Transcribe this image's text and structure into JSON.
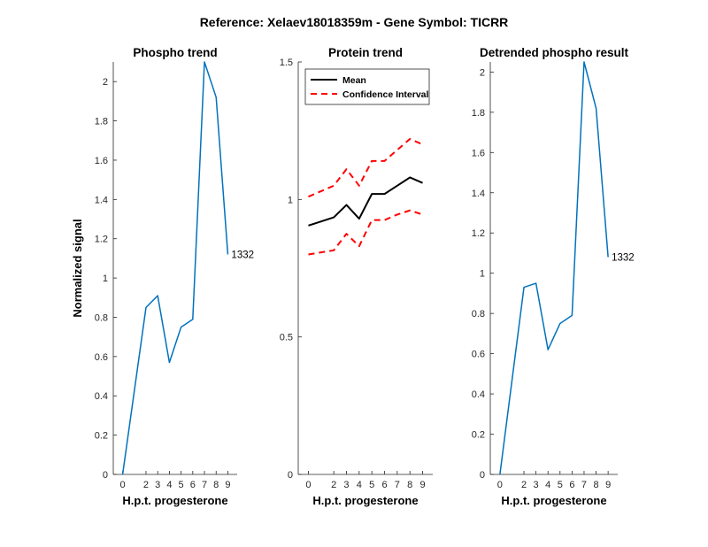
{
  "suptitle": "Reference:  Xelaev18018359m - Gene Symbol:  TICRR",
  "chart_data": [
    {
      "type": "line",
      "title": "Phospho trend",
      "xlabel": "H.p.t. progesterone",
      "ylabel": "Normalized signal",
      "xlim": [
        -0.8,
        9.8
      ],
      "ylim": [
        0,
        2.1
      ],
      "x_ticks": [
        0,
        2,
        3,
        4,
        5,
        6,
        7,
        8,
        9
      ],
      "y_ticks": [
        0,
        0.2,
        0.4,
        0.6,
        0.8,
        1,
        1.2,
        1.4,
        1.6,
        1.8,
        2
      ],
      "y_tick_labels": [
        "0",
        "0.2",
        "0.4",
        "0.6",
        "0.8",
        "1",
        "1.2",
        "1.4",
        "1.6",
        "1.8",
        "2"
      ],
      "series": [
        {
          "color": "#0072BD",
          "style": "solid",
          "x": [
            0,
            2,
            3,
            4,
            5,
            6,
            7,
            8,
            9
          ],
          "y": [
            0.0,
            0.85,
            0.91,
            0.57,
            0.75,
            0.79,
            2.1,
            1.92,
            1.12
          ]
        }
      ],
      "annotation": {
        "text": "1332",
        "x": 9,
        "y": 1.12
      }
    },
    {
      "type": "line",
      "title": "Protein trend",
      "xlabel": "H.p.t. progesterone",
      "ylabel": "",
      "xlim": [
        -0.8,
        9.8
      ],
      "ylim": [
        0,
        1.5
      ],
      "x_ticks": [
        0,
        2,
        3,
        4,
        5,
        6,
        7,
        8,
        9
      ],
      "y_ticks": [
        0,
        0.5,
        1,
        1.5
      ],
      "y_tick_labels": [
        "0",
        "0.5",
        "1",
        "1.5"
      ],
      "legend_position": "top-left",
      "series": [
        {
          "name": "Mean",
          "color": "#000000",
          "style": "solid",
          "x": [
            0,
            2,
            3,
            4,
            5,
            6,
            7,
            8,
            9
          ],
          "y": [
            0.905,
            0.935,
            0.98,
            0.93,
            1.02,
            1.02,
            1.05,
            1.08,
            1.06
          ]
        },
        {
          "name": "Confidence Interval",
          "color": "#FF0000",
          "style": "dashed",
          "x": [
            0,
            2,
            3,
            4,
            5,
            6,
            7,
            8,
            9
          ],
          "y": [
            1.01,
            1.05,
            1.11,
            1.05,
            1.14,
            1.14,
            1.18,
            1.22,
            1.2
          ]
        },
        {
          "color": "#FF0000",
          "style": "dashed",
          "x": [
            0,
            2,
            3,
            4,
            5,
            6,
            7,
            8,
            9
          ],
          "y": [
            0.8,
            0.815,
            0.875,
            0.83,
            0.925,
            0.925,
            0.945,
            0.96,
            0.945
          ]
        }
      ]
    },
    {
      "type": "line",
      "title": "Detrended phospho result",
      "xlabel": "H.p.t. progesterone",
      "ylabel": "",
      "xlim": [
        -0.8,
        9.8
      ],
      "ylim": [
        0,
        2.05
      ],
      "x_ticks": [
        0,
        2,
        3,
        4,
        5,
        6,
        7,
        8,
        9
      ],
      "y_ticks": [
        0,
        0.2,
        0.4,
        0.6,
        0.8,
        1,
        1.2,
        1.4,
        1.6,
        1.8,
        2
      ],
      "y_tick_labels": [
        "0",
        "0.2",
        "0.4",
        "0.6",
        "0.8",
        "1",
        "1.2",
        "1.4",
        "1.6",
        "1.8",
        "2"
      ],
      "series": [
        {
          "color": "#0072BD",
          "style": "solid",
          "x": [
            0,
            2,
            3,
            4,
            5,
            6,
            7,
            8,
            9
          ],
          "y": [
            0.0,
            0.93,
            0.95,
            0.62,
            0.75,
            0.79,
            2.05,
            1.82,
            1.08
          ]
        }
      ],
      "annotation": {
        "text": "1332",
        "x": 9,
        "y": 1.08
      }
    }
  ]
}
